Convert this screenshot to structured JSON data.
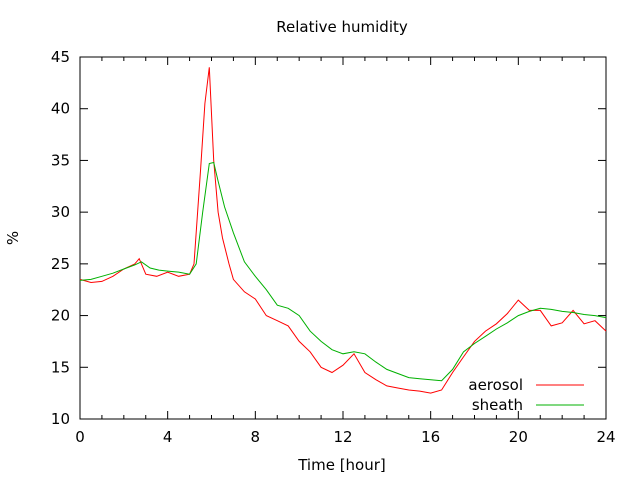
{
  "chart_data": {
    "type": "line",
    "title": "Relative humidity",
    "xlabel": "Time [hour]",
    "ylabel": "%",
    "xlim": [
      0,
      24
    ],
    "ylim": [
      10,
      45
    ],
    "xticks": [
      0,
      4,
      8,
      12,
      16,
      20,
      24
    ],
    "yticks": [
      10,
      15,
      20,
      25,
      30,
      35,
      40,
      45
    ],
    "grid": false,
    "legend_position": "bottom-right",
    "series": [
      {
        "name": "aerosol",
        "color": "#ff0000",
        "x": [
          0,
          0.5,
          1,
          1.5,
          2,
          2.5,
          2.7,
          3,
          3.5,
          4,
          4.5,
          5,
          5.2,
          5.5,
          5.7,
          5.9,
          6.1,
          6.3,
          6.5,
          6.8,
          7,
          7.5,
          8,
          8.5,
          9,
          9.5,
          10,
          10.5,
          11,
          11.5,
          12,
          12.5,
          13,
          13.5,
          14,
          14.5,
          15,
          15.5,
          16,
          16.5,
          17,
          17.5,
          18,
          18.5,
          19,
          19.5,
          20,
          20.5,
          21,
          21.5,
          22,
          22.5,
          23,
          23.5,
          24
        ],
        "y": [
          23.5,
          23.2,
          23.3,
          23.8,
          24.5,
          25,
          25.5,
          24,
          23.8,
          24.2,
          23.8,
          24,
          25,
          34,
          40.5,
          44,
          35,
          30,
          27.5,
          25,
          23.5,
          22.3,
          21.6,
          20,
          19.5,
          19,
          17.5,
          16.5,
          15,
          14.5,
          15.2,
          16.3,
          14.5,
          13.8,
          13.2,
          13,
          12.8,
          12.7,
          12.5,
          12.8,
          14.5,
          16,
          17.5,
          18.5,
          19.2,
          20.2,
          21.5,
          20.5,
          20.5,
          19,
          19.3,
          20.5,
          19.2,
          19.5,
          18.5
        ]
      },
      {
        "name": "sheath",
        "color": "#00b000",
        "x": [
          0,
          0.5,
          1,
          1.5,
          2,
          2.5,
          2.8,
          3.2,
          3.6,
          4,
          4.5,
          5,
          5.3,
          5.6,
          5.9,
          6.1,
          6.3,
          6.6,
          7,
          7.5,
          8,
          8.5,
          9,
          9.5,
          10,
          10.5,
          11,
          11.5,
          12,
          12.5,
          13,
          13.5,
          14,
          14.5,
          15,
          15.5,
          16,
          16.5,
          17,
          17.5,
          18,
          18.5,
          19,
          19.5,
          20,
          20.5,
          21,
          21.5,
          22,
          22.5,
          23,
          23.5,
          24
        ],
        "y": [
          23.4,
          23.5,
          23.8,
          24.1,
          24.5,
          24.9,
          25.2,
          24.6,
          24.4,
          24.3,
          24.2,
          24,
          25,
          30,
          34.7,
          34.8,
          33,
          30.5,
          28,
          25.2,
          23.8,
          22.5,
          21,
          20.7,
          20,
          18.5,
          17.5,
          16.7,
          16.3,
          16.5,
          16.3,
          15.5,
          14.8,
          14.4,
          14,
          13.9,
          13.8,
          13.7,
          14.8,
          16.5,
          17.3,
          18,
          18.7,
          19.3,
          20,
          20.4,
          20.7,
          20.6,
          20.4,
          20.3,
          20.1,
          20,
          19.8
        ]
      }
    ]
  }
}
